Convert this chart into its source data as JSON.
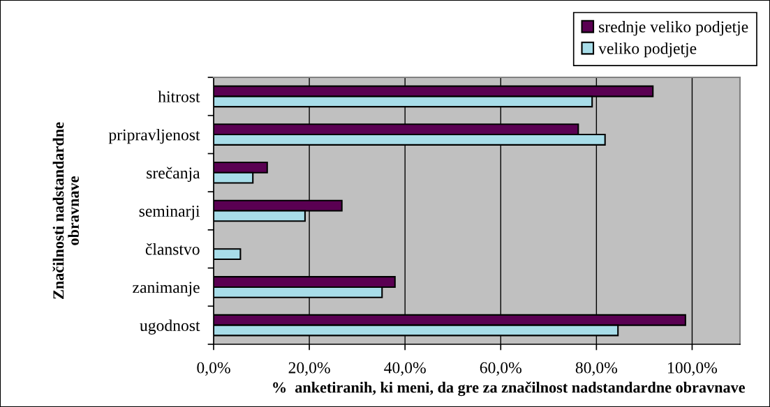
{
  "chart_data": {
    "type": "bar",
    "orientation": "horizontal",
    "xlabel": "%  anketiranih, ki meni, da gre za značilnost nadstandardne obravnave",
    "ylabel": "Značilnosti nadstandardne\nobravnave",
    "categories": [
      "hitrost",
      "pripravljenost",
      "srečanja",
      "seminarji",
      "članstvo",
      "zanimanje",
      "ugodnost"
    ],
    "series": [
      {
        "name": "srednje veliko podjetje",
        "color": "#5a0052",
        "values": [
          91.8,
          76.2,
          11.2,
          26.8,
          null,
          37.9,
          98.6
        ]
      },
      {
        "name": "veliko podjetje",
        "color": "#a8dde9",
        "values": [
          79.1,
          81.8,
          8.2,
          19.1,
          5.6,
          35.2,
          84.5
        ]
      }
    ],
    "xlim": [
      0,
      110
    ],
    "xticks": [
      {
        "value": 0,
        "label": "0,0%"
      },
      {
        "value": 20,
        "label": "20,0%"
      },
      {
        "value": 40,
        "label": "40,0%"
      },
      {
        "value": 60,
        "label": "60,0%"
      },
      {
        "value": 80,
        "label": "80,0%"
      },
      {
        "value": 100,
        "label": "100,0%"
      }
    ],
    "grid": "x",
    "legend": "top right"
  }
}
